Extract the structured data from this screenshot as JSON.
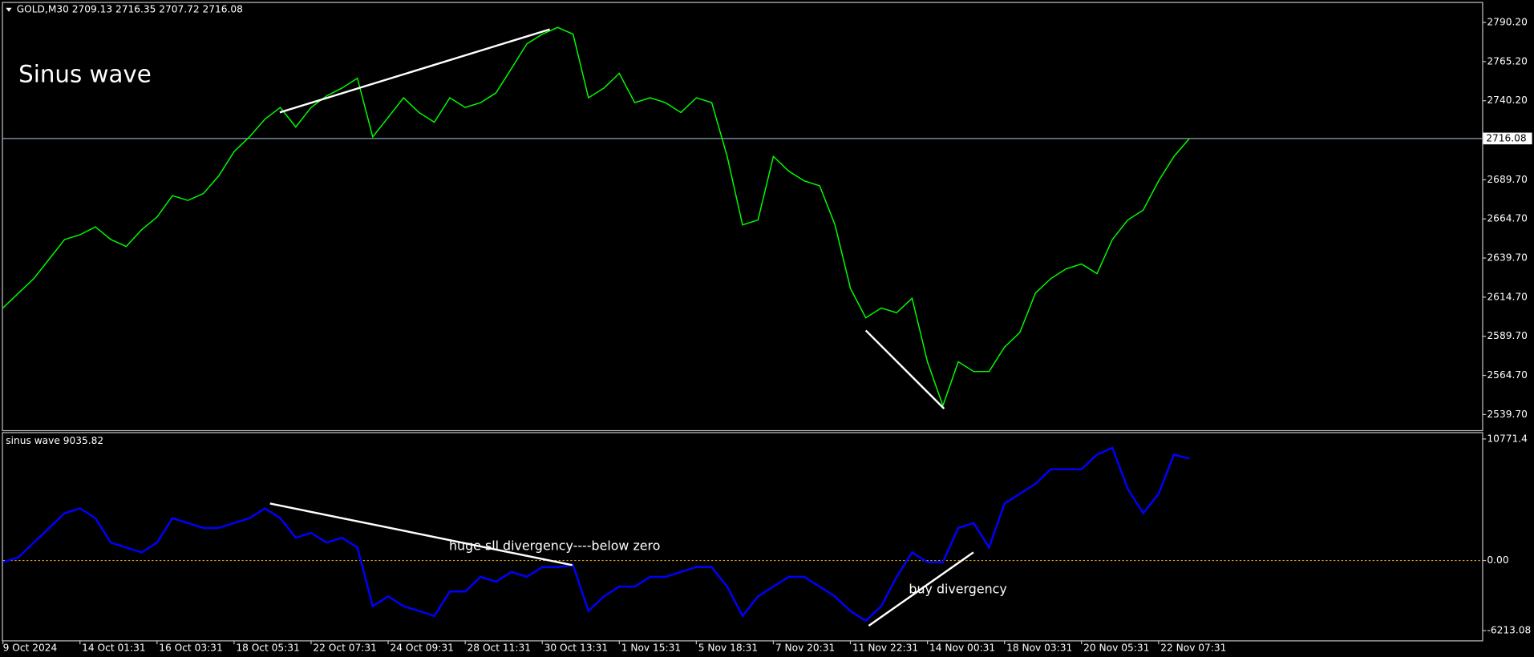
{
  "chart_data": [
    {
      "type": "line",
      "title": "GOLD,M30  2709.13 2716.35 2707.72 2716.08",
      "annotation": "Sinus wave",
      "color": "#00ff00",
      "ylim": [
        2529.7,
        2802.7
      ],
      "yticks": [
        {
          "value": 2790.2,
          "label": "2790.20"
        },
        {
          "value": 2765.2,
          "label": "2765.20"
        },
        {
          "value": 2740.2,
          "label": "2740.20"
        },
        {
          "value": 2689.7,
          "label": "2689.70"
        },
        {
          "value": 2664.7,
          "label": "2664.70"
        },
        {
          "value": 2639.7,
          "label": "2639.70"
        },
        {
          "value": 2614.7,
          "label": "2614.70"
        },
        {
          "value": 2589.7,
          "label": "2589.70"
        },
        {
          "value": 2564.7,
          "label": "2564.70"
        },
        {
          "value": 2539.7,
          "label": "2539.70"
        }
      ],
      "price_line": {
        "value": 2716.08,
        "label": "2716.08"
      },
      "values": [
        2607.8,
        2617.2,
        2626.5,
        2639.0,
        2651.5,
        2654.6,
        2659.6,
        2651.5,
        2647.1,
        2657.8,
        2665.9,
        2679.6,
        2676.5,
        2680.9,
        2692.1,
        2707.7,
        2717.1,
        2728.4,
        2735.9,
        2723.4,
        2735.9,
        2743.3,
        2748.3,
        2754.6,
        2717.1,
        2729.6,
        2742.1,
        2732.7,
        2726.5,
        2742.1,
        2735.9,
        2739.0,
        2745.2,
        2760.8,
        2776.5,
        2782.7,
        2787.1,
        2782.7,
        2742.1,
        2748.3,
        2757.7,
        2739.0,
        2742.1,
        2739.0,
        2732.7,
        2742.1,
        2739.0,
        2704.6,
        2660.9,
        2664.0,
        2704.6,
        2695.2,
        2689.0,
        2685.9,
        2660.9,
        2620.3,
        2601.5,
        2607.8,
        2604.7,
        2614.0,
        2573.4,
        2545.3,
        2573.4,
        2567.2,
        2567.2,
        2582.8,
        2592.2,
        2617.2,
        2626.5,
        2632.8,
        2635.9,
        2629.7,
        2651.5,
        2664.0,
        2670.3,
        2689.0,
        2704.6,
        2716.08,
        null,
        null,
        null,
        null,
        null,
        null,
        null,
        null,
        null,
        null,
        null,
        null,
        null,
        null,
        null,
        null,
        null,
        null,
        null
      ]
    },
    {
      "type": "line",
      "title": "sinus wave 9035.82",
      "annotations": [
        "huge sll divergency----below zero",
        "buy divergency"
      ],
      "color": "#0000ff",
      "ylim": [
        -7080,
        11378
      ],
      "yticks": [
        10771.4,
        {
          "value": 0,
          "label": "0.00"
        },
        {
          "value": -6213.08,
          "label": "-6213.08"
        }
      ],
      "levels": [
        0
      ],
      "level_color": "#daa520",
      "categories": [
        "9 Oct 2024",
        null,
        null,
        null,
        null,
        "14 Oct 01:31",
        null,
        null,
        null,
        null,
        "16 Oct 03:31",
        null,
        null,
        null,
        null,
        "18 Oct 05:31",
        null,
        null,
        null,
        null,
        "22 Oct 07:31",
        null,
        null,
        null,
        null,
        "24 Oct 09:31",
        null,
        null,
        null,
        null,
        "28 Oct 11:31",
        null,
        null,
        null,
        null,
        "30 Oct 13:31",
        null,
        null,
        null,
        null,
        "1 Nov 15:31",
        null,
        null,
        null,
        null,
        "5 Nov 18:31",
        null,
        null,
        null,
        null,
        "7 Nov 20:31",
        null,
        null,
        null,
        null,
        "11 Nov 22:31",
        null,
        null,
        null,
        null,
        "14 Nov 00:31",
        null,
        null,
        null,
        null,
        "18 Nov 03:31",
        null,
        null,
        null,
        null,
        "20 Nov 05:31",
        null,
        null,
        null,
        null,
        "22 Nov 07:31",
        null,
        null,
        null,
        null,
        null,
        null,
        null,
        null,
        null,
        null,
        null,
        null,
        null,
        null,
        null,
        null,
        null,
        null,
        null,
        null,
        null
      ],
      "values": [
        -148,
        285,
        1585,
        2885,
        4185,
        4618,
        3752,
        1585,
        1152,
        718,
        1585,
        3752,
        3318,
        2885,
        2885,
        3318,
        3752,
        4618,
        3752,
        2018,
        2452,
        1585,
        2018,
        1152,
        -4048,
        -3181,
        -4048,
        -4481,
        -4914,
        -2748,
        -2748,
        -1448,
        -1881,
        -1015,
        -1448,
        -581,
        -581,
        -408,
        -4481,
        -3181,
        -2315,
        -2315,
        -1448,
        -1448,
        -1015,
        -581,
        -581,
        -2315,
        -4914,
        -3181,
        -2315,
        -1448,
        -1448,
        -2315,
        -3181,
        -4481,
        -5348,
        -4048,
        -1448,
        718,
        -148,
        -148,
        2885,
        3318,
        1152,
        5051,
        5918,
        6785,
        8085,
        8085,
        8085,
        9384,
        9991,
        6351,
        4185,
        5918,
        9384,
        9035.82,
        null,
        null,
        null,
        null,
        null,
        null,
        null,
        null,
        null,
        null,
        null,
        null,
        null,
        null,
        null,
        null,
        null,
        null,
        null
      ]
    }
  ]
}
